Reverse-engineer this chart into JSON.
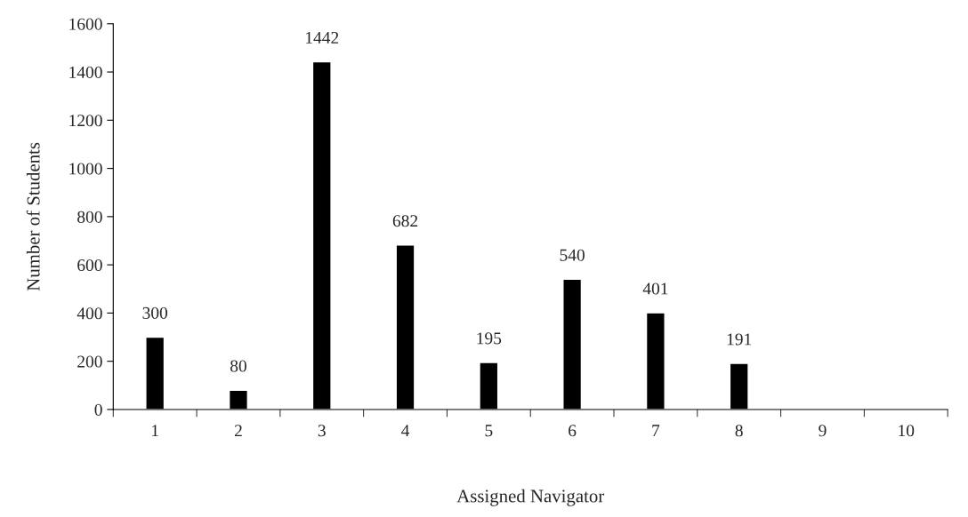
{
  "chart_data": {
    "type": "bar",
    "categories": [
      "1",
      "2",
      "3",
      "4",
      "5",
      "6",
      "7",
      "8",
      "9",
      "10"
    ],
    "values": [
      300,
      80,
      1442,
      682,
      195,
      540,
      401,
      191,
      null,
      null
    ],
    "value_labels": [
      "300",
      "80",
      "1442",
      "682",
      "195",
      "540",
      "401",
      "191",
      null,
      null
    ],
    "color": "#000000",
    "xlabel": "Assigned Navigator",
    "ylabel": "Number of Students",
    "ylim": [
      0,
      1600
    ],
    "yticks": [
      0,
      200,
      400,
      600,
      800,
      1000,
      1200,
      1400,
      1600
    ]
  }
}
